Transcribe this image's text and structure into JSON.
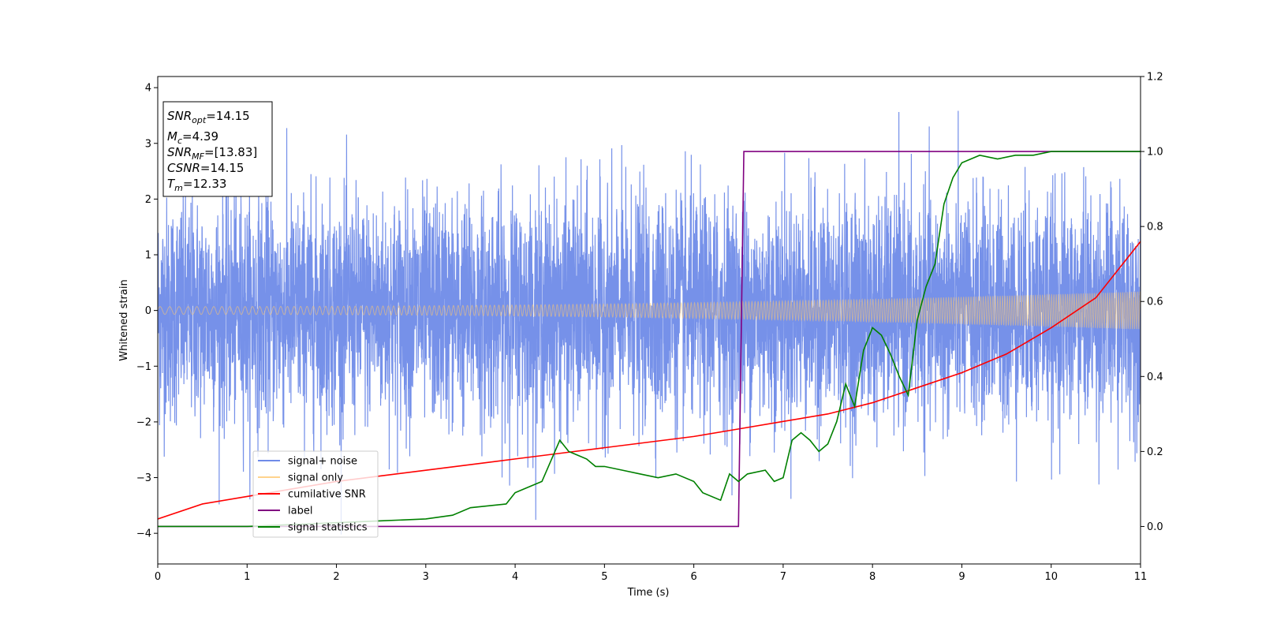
{
  "chart_data": {
    "type": "line",
    "xlabel": "Time (s)",
    "ylabel": "Whitened strain",
    "xlim": [
      0,
      11
    ],
    "ylim": [
      -4.55,
      4.2
    ],
    "y2lim": [
      -0.1,
      1.2
    ],
    "grid": false,
    "legend_placement": "lower-left",
    "xticks": [
      "0",
      "1",
      "2",
      "3",
      "4",
      "5",
      "6",
      "7",
      "8",
      "9",
      "10",
      "11"
    ],
    "yticks": [
      "4",
      "3",
      "2",
      "1",
      "0",
      "−1",
      "−2",
      "−3",
      "−4"
    ],
    "y2ticks": [
      "1.2",
      "1.0",
      "0.8",
      "0.6",
      "0.4",
      "0.2",
      "0.0"
    ],
    "annotation": {
      "snr_opt": {
        "var": "SNR",
        "sub": "opt",
        "value": "=14.15"
      },
      "mc": {
        "var": "M",
        "sub": "c",
        "value": "=4.39"
      },
      "snr_mf": {
        "var": "SNR",
        "sub": "MF",
        "value": "=[13.83]"
      },
      "csnr": {
        "var": "CSNR",
        "sub": "",
        "value": "=14.15"
      },
      "tm": {
        "var": "T",
        "sub": "m",
        "value": "=12.33"
      }
    },
    "series": [
      {
        "name": "signal+ noise",
        "axis": "left",
        "color": "#6f8be8",
        "kind": "noise",
        "sigma": 1.0,
        "spike_max": 3.8,
        "spike_min": -4.15
      },
      {
        "name": "signal only",
        "axis": "left",
        "color": "#ffc870",
        "kind": "chirp",
        "amplitude_start": 0.07,
        "amplitude_end": 0.34
      },
      {
        "name": "cumilative SNR",
        "axis": "right",
        "color": "#ff0000",
        "x": [
          0,
          0.5,
          1,
          1.5,
          2,
          2.5,
          3,
          3.5,
          4,
          4.5,
          5,
          5.5,
          6,
          6.5,
          7,
          7.5,
          8,
          8.5,
          9,
          9.5,
          10,
          10.5,
          11
        ],
        "y": [
          0.02,
          0.06,
          0.08,
          0.1,
          0.12,
          0.135,
          0.15,
          0.165,
          0.18,
          0.195,
          0.21,
          0.225,
          0.24,
          0.26,
          0.28,
          0.3,
          0.33,
          0.37,
          0.41,
          0.46,
          0.53,
          0.61,
          0.76
        ]
      },
      {
        "name": "label",
        "axis": "right",
        "color": "#800080",
        "x": [
          0,
          6.5,
          6.56,
          11
        ],
        "y": [
          0,
          0,
          1,
          1
        ]
      },
      {
        "name": "signal statistics",
        "axis": "right",
        "color": "#008000",
        "x": [
          0,
          1,
          2,
          2.5,
          3,
          3.3,
          3.5,
          3.7,
          3.9,
          4.0,
          4.1,
          4.3,
          4.5,
          4.6,
          4.7,
          4.8,
          4.9,
          5.0,
          5.2,
          5.4,
          5.6,
          5.8,
          6.0,
          6.1,
          6.3,
          6.4,
          6.5,
          6.6,
          6.8,
          6.9,
          7.0,
          7.1,
          7.2,
          7.3,
          7.4,
          7.5,
          7.6,
          7.7,
          7.8,
          7.9,
          8.0,
          8.1,
          8.2,
          8.3,
          8.4,
          8.5,
          8.6,
          8.7,
          8.8,
          8.9,
          9.0,
          9.2,
          9.4,
          9.6,
          9.8,
          10.0,
          10.5,
          11
        ],
        "y": [
          0.0,
          0.0,
          0.01,
          0.015,
          0.02,
          0.03,
          0.05,
          0.055,
          0.06,
          0.09,
          0.1,
          0.12,
          0.23,
          0.2,
          0.19,
          0.18,
          0.16,
          0.16,
          0.15,
          0.14,
          0.13,
          0.14,
          0.12,
          0.09,
          0.07,
          0.14,
          0.12,
          0.14,
          0.15,
          0.12,
          0.13,
          0.23,
          0.25,
          0.23,
          0.2,
          0.22,
          0.28,
          0.38,
          0.32,
          0.47,
          0.53,
          0.51,
          0.46,
          0.4,
          0.35,
          0.55,
          0.64,
          0.7,
          0.86,
          0.93,
          0.97,
          0.99,
          0.98,
          0.99,
          0.99,
          1.0,
          1.0,
          1.0
        ]
      }
    ]
  }
}
